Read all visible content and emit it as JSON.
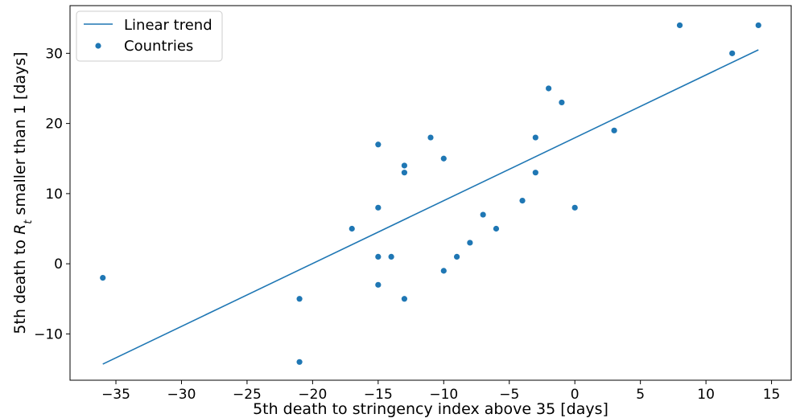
{
  "chart_data": {
    "type": "scatter",
    "xlabel": "5th death to stringency index above 35 [days]",
    "ylabel_parts": [
      "5th death to ",
      "R",
      "t",
      " smaller than 1 [days]"
    ],
    "xlim": [
      -38.5,
      16.5
    ],
    "ylim": [
      -16.6,
      36.8
    ],
    "xticks": [
      -35,
      -30,
      -25,
      -20,
      -15,
      -10,
      -5,
      0,
      5,
      10,
      15
    ],
    "yticks": [
      -10,
      0,
      10,
      20,
      30
    ],
    "tick_labels_x": [
      "−35",
      "−30",
      "−25",
      "−20",
      "−15",
      "−10",
      "−5",
      "0",
      "5",
      "10",
      "15"
    ],
    "tick_labels_y": [
      "−10",
      "0",
      "10",
      "20",
      "30"
    ],
    "grid": false,
    "legend_position": "top-left",
    "color": "#1f77b4",
    "series": [
      {
        "name": "Linear trend",
        "kind": "line",
        "x": [
          -36,
          14
        ],
        "y": [
          -14.3,
          30.5
        ]
      },
      {
        "name": "Countries",
        "kind": "scatter",
        "x": [
          -36,
          -21,
          -21,
          -17,
          -15,
          -15,
          -15,
          -15,
          -14,
          -13,
          -13,
          -13,
          -11,
          -10,
          -10,
          -9,
          -8,
          -7,
          -6,
          -4,
          -3,
          -3,
          -2,
          -1,
          0,
          3,
          8,
          12,
          14
        ],
        "y": [
          -2,
          -5,
          -14,
          5,
          17,
          8,
          1,
          -3,
          1,
          14,
          13,
          -5,
          18,
          15,
          -1,
          1,
          3,
          7,
          5,
          9,
          18,
          13,
          25,
          23,
          8,
          19,
          34,
          30,
          34
        ]
      }
    ]
  }
}
